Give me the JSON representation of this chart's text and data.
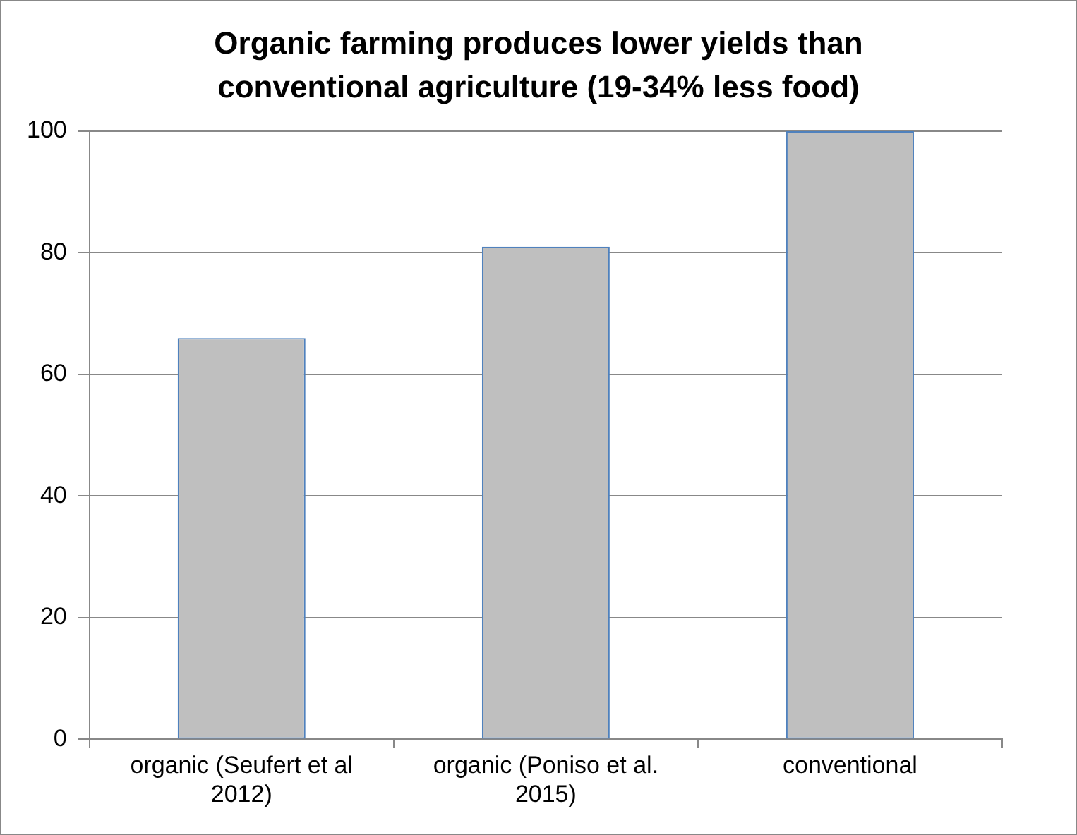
{
  "chart_data": {
    "type": "bar",
    "title": "Organic farming produces lower yields than conventional agriculture (19-34% less food)",
    "categories": [
      "organic (Seufert et al 2012)",
      "organic (Poniso et al. 2015)",
      "conventional"
    ],
    "values": [
      66,
      81,
      100
    ],
    "color": "#bfbfbf",
    "ylim": [
      0,
      100
    ],
    "yticks": [
      0,
      20,
      40,
      60,
      80,
      100
    ],
    "grid": "y",
    "legend": false
  }
}
